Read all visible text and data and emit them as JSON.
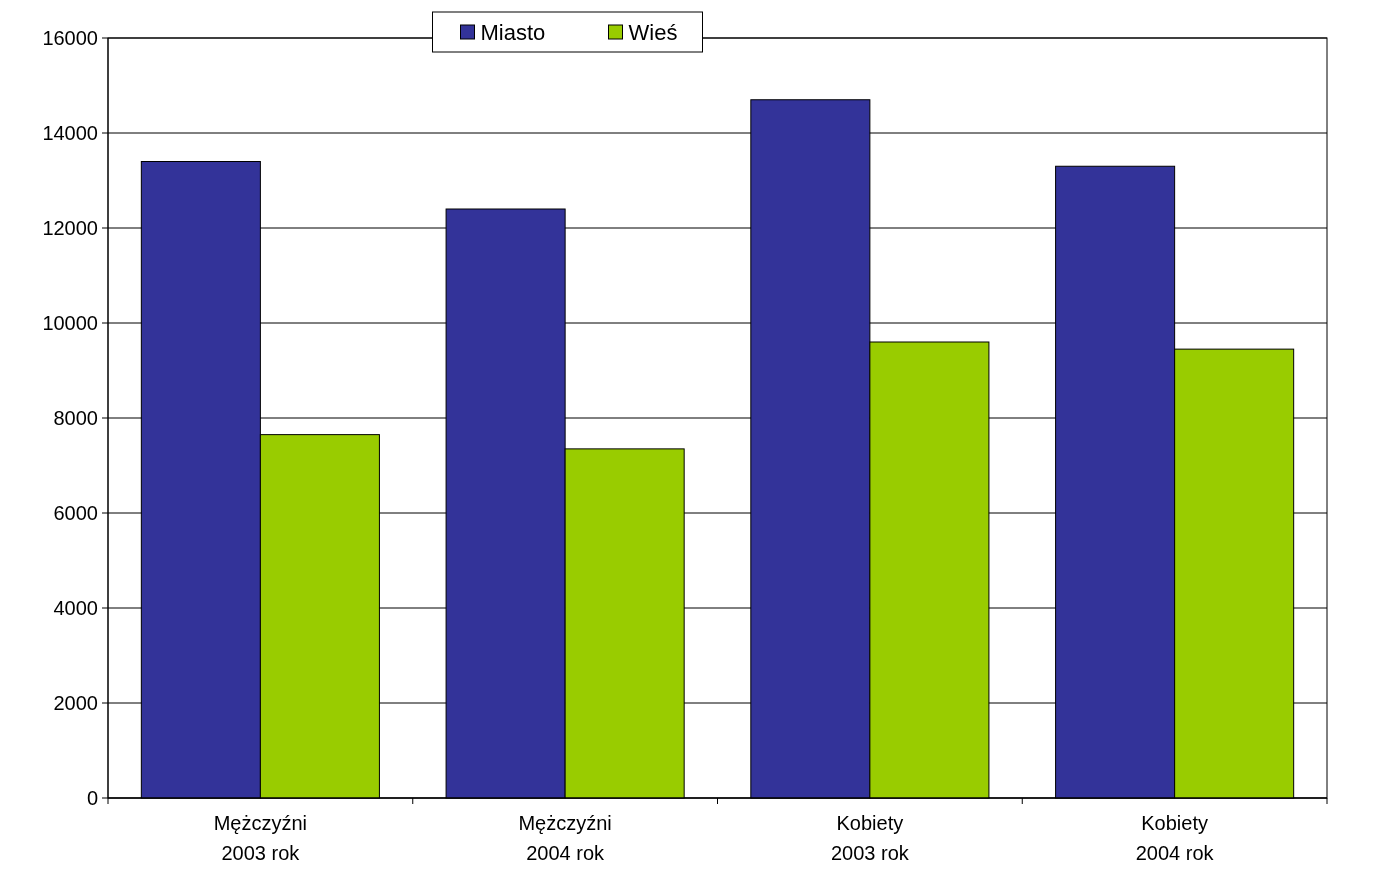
{
  "chart_data": {
    "type": "bar",
    "categories": [
      "Mężczyźni\n2003 rok",
      "Mężczyźni\n2004 rok",
      "Kobiety\n2003 rok",
      "Kobiety\n2004 rok"
    ],
    "series": [
      {
        "name": "Miasto",
        "color": "#333399",
        "values": [
          13400,
          12400,
          14700,
          13300
        ]
      },
      {
        "name": "Wieś",
        "color": "#99cc00",
        "values": [
          7650,
          7350,
          9600,
          9450
        ]
      }
    ],
    "ylim": [
      0,
      16000
    ],
    "yticks": [
      0,
      2000,
      4000,
      6000,
      8000,
      10000,
      12000,
      14000,
      16000
    ],
    "grid": "y",
    "legend": "top"
  }
}
